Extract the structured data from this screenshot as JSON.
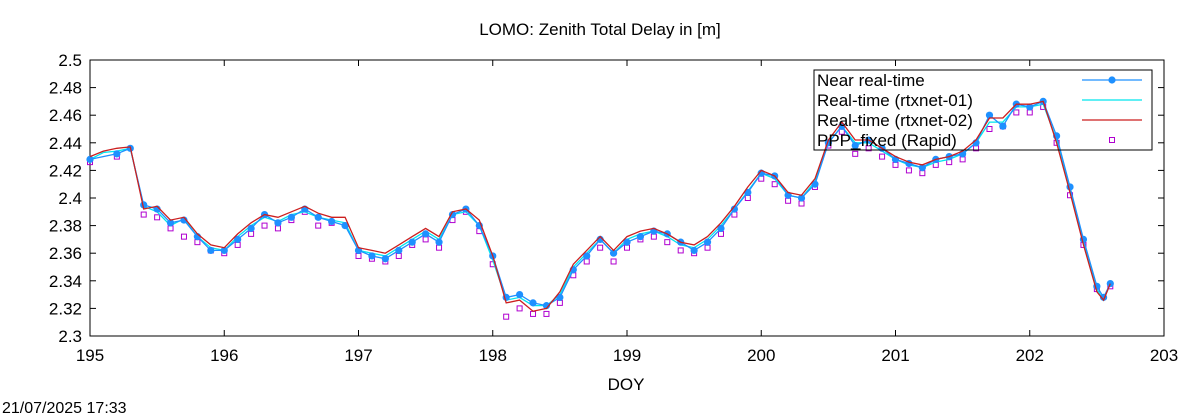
{
  "footer": {
    "timestamp": "21/07/2025 17:33"
  },
  "chart_data": {
    "type": "line",
    "title": "LOMO: Zenith Total Delay in [m]",
    "xlabel": "DOY",
    "ylabel": "",
    "xlim": [
      195,
      203
    ],
    "ylim": [
      2.3,
      2.5
    ],
    "xticks": [
      195,
      196,
      197,
      198,
      199,
      200,
      201,
      202,
      203
    ],
    "yticks": [
      2.3,
      2.32,
      2.34,
      2.36,
      2.38,
      2.4,
      2.42,
      2.44,
      2.46,
      2.48,
      2.5
    ],
    "grid": false,
    "legend": {
      "position": "top-right"
    },
    "colors": {
      "near_real_time": "#1e90ff",
      "rtxnet01": "#00e5ee",
      "rtxnet02": "#cc1f1f",
      "ppp_fixed": "#b000d0"
    },
    "series": [
      {
        "name": "Near real-time",
        "style": "line-points",
        "x": [
          195.0,
          195.2,
          195.3,
          195.4,
          195.5,
          195.6,
          195.7,
          195.8,
          195.9,
          196.0,
          196.1,
          196.2,
          196.3,
          196.4,
          196.5,
          196.6,
          196.7,
          196.8,
          196.9,
          197.0,
          197.1,
          197.2,
          197.3,
          197.4,
          197.5,
          197.6,
          197.7,
          197.8,
          197.9,
          198.0,
          198.1,
          198.2,
          198.3,
          198.4,
          198.5,
          198.6,
          198.7,
          198.8,
          198.9,
          199.0,
          199.1,
          199.2,
          199.3,
          199.4,
          199.5,
          199.6,
          199.7,
          199.8,
          199.9,
          200.0,
          200.1,
          200.2,
          200.3,
          200.4,
          200.5,
          200.6,
          200.7,
          200.8,
          200.9,
          201.0,
          201.1,
          201.2,
          201.3,
          201.4,
          201.5,
          201.6,
          201.7,
          201.8,
          201.9,
          202.0,
          202.1,
          202.2,
          202.3,
          202.4,
          202.5,
          202.55,
          202.6
        ],
        "y": [
          2.428,
          2.432,
          2.436,
          2.395,
          2.392,
          2.382,
          2.384,
          2.372,
          2.362,
          2.362,
          2.37,
          2.378,
          2.388,
          2.382,
          2.386,
          2.392,
          2.386,
          2.383,
          2.38,
          2.362,
          2.358,
          2.356,
          2.362,
          2.368,
          2.374,
          2.368,
          2.388,
          2.392,
          2.38,
          2.358,
          2.328,
          2.33,
          2.324,
          2.322,
          2.328,
          2.348,
          2.358,
          2.37,
          2.36,
          2.368,
          2.372,
          2.376,
          2.374,
          2.368,
          2.362,
          2.368,
          2.378,
          2.392,
          2.404,
          2.418,
          2.416,
          2.402,
          2.4,
          2.41,
          2.44,
          2.452,
          2.438,
          2.442,
          2.436,
          2.428,
          2.425,
          2.422,
          2.428,
          2.43,
          2.432,
          2.44,
          2.46,
          2.452,
          2.468,
          2.466,
          2.47,
          2.445,
          2.408,
          2.37,
          2.336,
          2.328,
          2.338
        ]
      },
      {
        "name": "Real-time (rtxnet-01)",
        "style": "line",
        "x": [
          195.0,
          195.1,
          195.2,
          195.3,
          195.4,
          195.5,
          195.6,
          195.7,
          195.8,
          195.9,
          196.0,
          196.1,
          196.2,
          196.3,
          196.4,
          196.5,
          196.6,
          196.7,
          196.8,
          196.9,
          197.0,
          197.1,
          197.2,
          197.3,
          197.4,
          197.5,
          197.6,
          197.7,
          197.8,
          197.9,
          198.0,
          198.1,
          198.2,
          198.3,
          198.4,
          198.5,
          198.6,
          198.7,
          198.8,
          198.9,
          199.0,
          199.1,
          199.2,
          199.3,
          199.4,
          199.5,
          199.6,
          199.7,
          199.8,
          199.9,
          200.0,
          200.1,
          200.2,
          200.3,
          200.4,
          200.5,
          200.6,
          200.7,
          200.8,
          200.9,
          201.0,
          201.1,
          201.2,
          201.3,
          201.4,
          201.5,
          201.6,
          201.7,
          201.8,
          201.9,
          202.0,
          202.1,
          202.2,
          202.3,
          202.4,
          202.5,
          202.55,
          202.6
        ],
        "y": [
          2.428,
          2.433,
          2.434,
          2.436,
          2.394,
          2.39,
          2.38,
          2.385,
          2.372,
          2.364,
          2.362,
          2.372,
          2.38,
          2.386,
          2.383,
          2.388,
          2.39,
          2.386,
          2.384,
          2.382,
          2.362,
          2.36,
          2.358,
          2.364,
          2.37,
          2.376,
          2.37,
          2.388,
          2.39,
          2.38,
          2.355,
          2.326,
          2.328,
          2.322,
          2.322,
          2.33,
          2.35,
          2.36,
          2.37,
          2.36,
          2.37,
          2.374,
          2.376,
          2.372,
          2.366,
          2.364,
          2.37,
          2.38,
          2.392,
          2.405,
          2.418,
          2.414,
          2.402,
          2.4,
          2.412,
          2.44,
          2.452,
          2.44,
          2.44,
          2.434,
          2.428,
          2.424,
          2.422,
          2.426,
          2.428,
          2.432,
          2.44,
          2.455,
          2.455,
          2.466,
          2.466,
          2.468,
          2.442,
          2.406,
          2.368,
          2.334,
          2.326,
          2.338
        ]
      },
      {
        "name": "Real-time (rtxnet-02)",
        "style": "line",
        "x": [
          195.0,
          195.1,
          195.2,
          195.3,
          195.4,
          195.5,
          195.6,
          195.7,
          195.8,
          195.9,
          196.0,
          196.1,
          196.2,
          196.3,
          196.4,
          196.5,
          196.6,
          196.7,
          196.8,
          196.9,
          197.0,
          197.1,
          197.2,
          197.3,
          197.4,
          197.5,
          197.6,
          197.7,
          197.8,
          197.9,
          198.0,
          198.1,
          198.2,
          198.3,
          198.4,
          198.5,
          198.6,
          198.7,
          198.8,
          198.9,
          199.0,
          199.1,
          199.2,
          199.3,
          199.4,
          199.5,
          199.6,
          199.7,
          199.8,
          199.9,
          200.0,
          200.1,
          200.2,
          200.3,
          200.4,
          200.5,
          200.6,
          200.7,
          200.8,
          200.9,
          201.0,
          201.1,
          201.2,
          201.3,
          201.4,
          201.5,
          201.6,
          201.7,
          201.8,
          201.9,
          202.0,
          202.1,
          202.2,
          202.3,
          202.4,
          202.5,
          202.55,
          202.6
        ],
        "y": [
          2.43,
          2.434,
          2.436,
          2.437,
          2.392,
          2.394,
          2.384,
          2.386,
          2.374,
          2.366,
          2.364,
          2.374,
          2.382,
          2.388,
          2.386,
          2.39,
          2.394,
          2.389,
          2.386,
          2.386,
          2.364,
          2.362,
          2.36,
          2.366,
          2.372,
          2.378,
          2.372,
          2.39,
          2.392,
          2.384,
          2.358,
          2.324,
          2.326,
          2.318,
          2.32,
          2.332,
          2.352,
          2.362,
          2.372,
          2.362,
          2.372,
          2.376,
          2.378,
          2.374,
          2.368,
          2.366,
          2.372,
          2.382,
          2.394,
          2.408,
          2.42,
          2.416,
          2.404,
          2.402,
          2.414,
          2.442,
          2.455,
          2.442,
          2.442,
          2.436,
          2.43,
          2.426,
          2.424,
          2.428,
          2.43,
          2.434,
          2.442,
          2.458,
          2.458,
          2.468,
          2.468,
          2.47,
          2.44,
          2.404,
          2.366,
          2.332,
          2.326,
          2.338
        ]
      },
      {
        "name": "PPP_fixed (Rapid)",
        "style": "points",
        "x": [
          195.0,
          195.2,
          195.4,
          195.5,
          195.6,
          195.7,
          195.8,
          195.9,
          196.0,
          196.1,
          196.2,
          196.3,
          196.4,
          196.5,
          196.6,
          196.7,
          196.8,
          197.0,
          197.1,
          197.2,
          197.3,
          197.4,
          197.5,
          197.6,
          197.7,
          197.8,
          197.9,
          198.0,
          198.1,
          198.2,
          198.3,
          198.4,
          198.5,
          198.6,
          198.7,
          198.8,
          198.9,
          199.0,
          199.1,
          199.2,
          199.3,
          199.4,
          199.5,
          199.6,
          199.7,
          199.8,
          199.9,
          200.0,
          200.1,
          200.2,
          200.3,
          200.4,
          200.5,
          200.6,
          200.7,
          200.8,
          200.9,
          201.0,
          201.1,
          201.2,
          201.3,
          201.4,
          201.5,
          201.6,
          201.7,
          201.8,
          201.9,
          202.0,
          202.1,
          202.2,
          202.3,
          202.4,
          202.5,
          202.6
        ],
        "y": [
          2.426,
          2.43,
          2.388,
          2.386,
          2.378,
          2.372,
          2.368,
          2.362,
          2.36,
          2.366,
          2.374,
          2.38,
          2.378,
          2.384,
          2.39,
          2.38,
          2.382,
          2.358,
          2.356,
          2.354,
          2.358,
          2.366,
          2.37,
          2.364,
          2.384,
          2.39,
          2.376,
          2.352,
          2.314,
          2.32,
          2.316,
          2.316,
          2.324,
          2.344,
          2.354,
          2.364,
          2.354,
          2.364,
          2.37,
          2.372,
          2.368,
          2.362,
          2.36,
          2.364,
          2.374,
          2.388,
          2.4,
          2.414,
          2.41,
          2.398,
          2.396,
          2.408,
          2.438,
          2.448,
          2.432,
          2.436,
          2.43,
          2.424,
          2.42,
          2.418,
          2.424,
          2.426,
          2.428,
          2.436,
          2.45,
          2.452,
          2.462,
          2.462,
          2.466,
          2.44,
          2.402,
          2.366,
          2.334,
          2.336
        ]
      }
    ]
  }
}
